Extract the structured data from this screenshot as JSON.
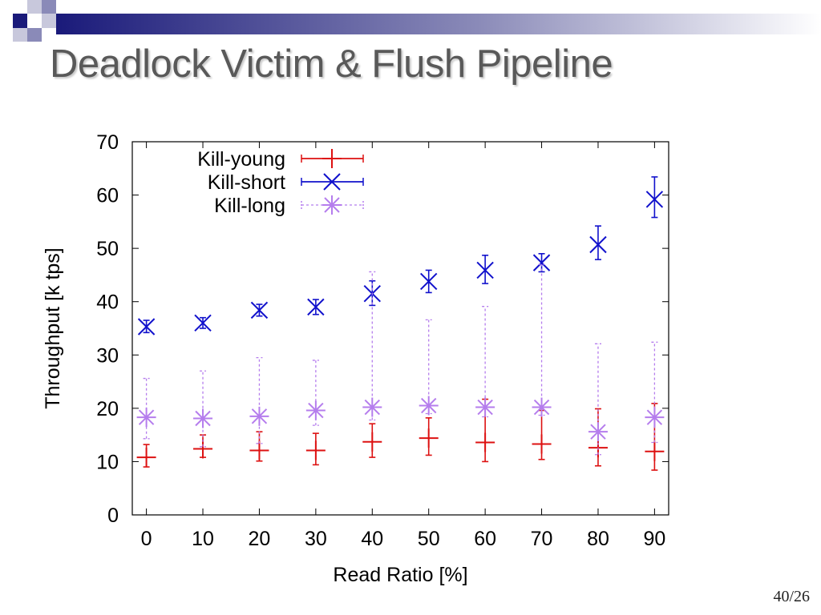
{
  "slide": {
    "title": "Deadlock Victim & Flush Pipeline",
    "page_number": "40/26"
  },
  "colors": {
    "title_text": "#595959",
    "header_dark": "#1a1a7a",
    "kill_young": "#dd1111",
    "kill_short": "#1111cc",
    "kill_long": "#b57ded"
  },
  "chart_data": {
    "type": "scatter",
    "title": "",
    "xlabel": "Read Ratio [%]",
    "ylabel": "Throughput [k tps]",
    "xlim": [
      -2.5,
      92.5
    ],
    "ylim": [
      0,
      70
    ],
    "x": [
      0,
      10,
      20,
      30,
      40,
      50,
      60,
      70,
      80,
      90
    ],
    "x_tick_labels": [
      "0",
      "10",
      "20",
      "30",
      "40",
      "50",
      "60",
      "70",
      "80",
      "90"
    ],
    "y_ticks": [
      0,
      10,
      20,
      30,
      40,
      50,
      60,
      70
    ],
    "y_tick_labels": [
      "0",
      "10",
      "20",
      "30",
      "40",
      "50",
      "60",
      "70"
    ],
    "legend_position": "top-left",
    "error_bars": true,
    "series": [
      {
        "name": "Kill-young",
        "marker": "plus",
        "color": "#dd1111",
        "dashed": false,
        "values": [
          10.8,
          12.4,
          12.1,
          12.1,
          13.7,
          14.4,
          13.6,
          13.3,
          12.6,
          11.9
        ],
        "low": [
          9.0,
          10.8,
          10.1,
          9.4,
          10.8,
          11.2,
          10.0,
          10.4,
          9.2,
          8.4
        ],
        "high": [
          13.2,
          15.0,
          15.6,
          15.3,
          17.1,
          18.2,
          21.7,
          19.6,
          19.9,
          20.9
        ]
      },
      {
        "name": "Kill-short",
        "marker": "cross",
        "color": "#1111cc",
        "dashed": false,
        "values": [
          35.3,
          36.0,
          38.4,
          39.0,
          41.5,
          43.8,
          45.9,
          47.3,
          50.7,
          59.2
        ],
        "low": [
          34.2,
          35.0,
          37.3,
          37.6,
          39.3,
          41.7,
          43.4,
          45.6,
          47.9,
          55.8
        ],
        "high": [
          36.5,
          37.0,
          39.5,
          40.4,
          43.9,
          45.9,
          48.7,
          49.0,
          54.2,
          63.4
        ]
      },
      {
        "name": "Kill-long",
        "marker": "star",
        "color": "#b57ded",
        "dashed": true,
        "values": [
          18.3,
          18.1,
          18.5,
          19.6,
          20.2,
          20.5,
          20.2,
          20.2,
          15.6,
          18.3
        ],
        "low": [
          14.3,
          12.8,
          13.4,
          16.8,
          17.8,
          19.0,
          18.4,
          18.7,
          11.3,
          13.6
        ],
        "high": [
          25.6,
          27.0,
          29.5,
          29.0,
          45.6,
          36.6,
          39.1,
          47.0,
          32.1,
          32.4
        ]
      }
    ]
  }
}
